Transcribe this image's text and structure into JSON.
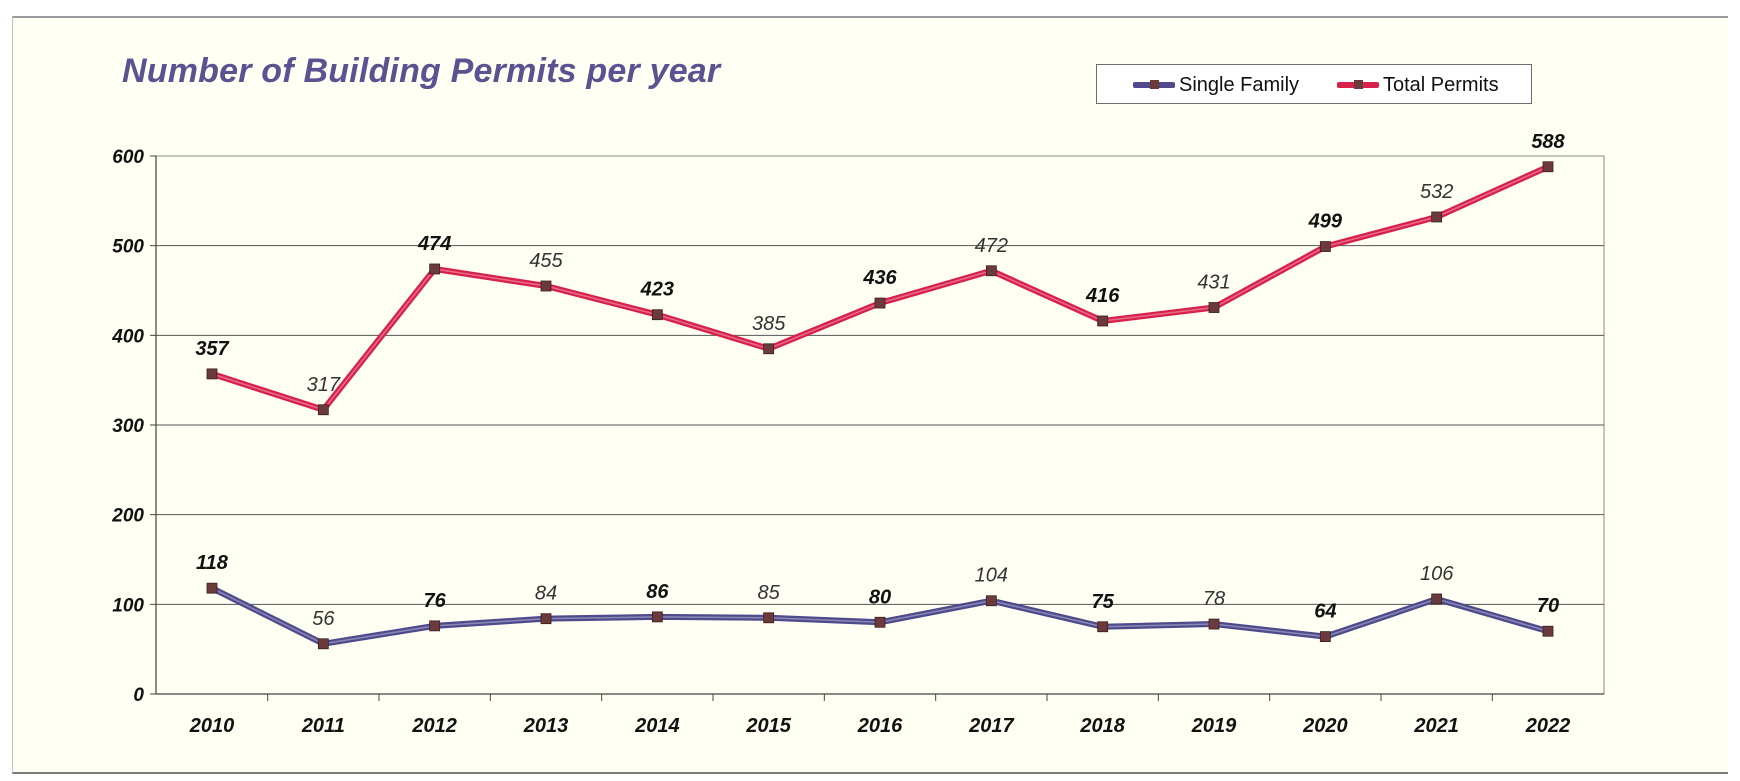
{
  "chart_data": {
    "type": "line",
    "title": "Number of Building Permits per year",
    "categories": [
      "2010",
      "2011",
      "2012",
      "2013",
      "2014",
      "2015",
      "2016",
      "2017",
      "2018",
      "2019",
      "2020",
      "2021",
      "2022"
    ],
    "series": [
      {
        "name": "Single Family",
        "values": [
          118,
          56,
          76,
          84,
          86,
          85,
          80,
          104,
          75,
          78,
          64,
          106,
          70
        ],
        "color": "#4e4a8c"
      },
      {
        "name": "Total Permits",
        "values": [
          357,
          317,
          474,
          455,
          423,
          385,
          436,
          472,
          416,
          431,
          499,
          532,
          588
        ],
        "color": "#d8204a"
      }
    ],
    "ylim": [
      0,
      600
    ],
    "yticks": [
      0,
      100,
      200,
      300,
      400,
      500,
      600
    ],
    "grid": true,
    "legend": "top-right",
    "marker_color": "#6b3a3a",
    "plot_background": "#fffff4"
  }
}
